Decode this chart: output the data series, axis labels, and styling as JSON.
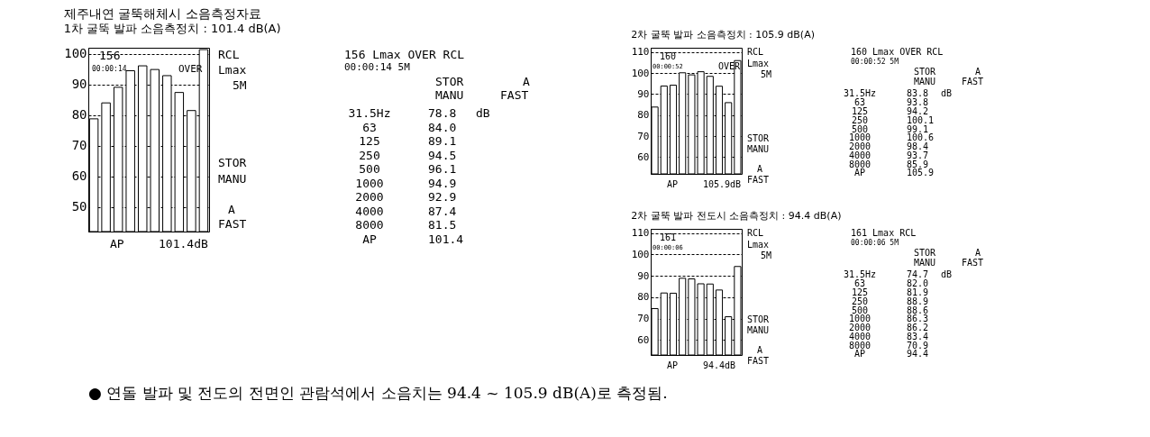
{
  "chart_data": [
    {
      "type": "bar",
      "title": "제주내연 굴뚝해체시 소음측정자료",
      "subtitle": "1차 굴뚝 발파 소음측정치 : 101.4 dB(A)",
      "categories": [
        null,
        null,
        null,
        null,
        null,
        null,
        null,
        null,
        null,
        null
      ],
      "values": [
        78.8,
        84.0,
        89.1,
        94.5,
        96.1,
        94.9,
        92.9,
        87.4,
        81.5,
        101.4
      ],
      "color": "#ffffff",
      "ylim": [
        42,
        102
      ],
      "yticks": [
        50,
        60,
        70,
        80,
        90,
        100
      ],
      "grid": "y",
      "annotations": [
        "156",
        "00:00:14",
        "OVER",
        "RCL",
        "Lmax",
        "5M",
        "STOR",
        "MANU",
        "A",
        "FAST",
        "AP",
        "101.4dB",
        "156 Lmax OVER RCL",
        "00:00:14 5M",
        "STOR",
        "MANU",
        "A",
        "FAST",
        "dB",
        "31.5Hz",
        "78.8",
        "63",
        "84.0",
        "125",
        "89.1",
        "250",
        "94.5",
        "500",
        "96.1",
        "1000",
        "94.9",
        "2000",
        "92.9",
        "4000",
        "87.4",
        "8000",
        "81.5",
        "AP",
        "101.4"
      ]
    },
    {
      "type": "bar",
      "title": "2차 굴뚝 발파 소음측정치 : 105.9 dB(A)",
      "categories": [
        null,
        null,
        null,
        null,
        null,
        null,
        null,
        null,
        null,
        null
      ],
      "values": [
        83.8,
        93.8,
        94.2,
        100.1,
        99.1,
        100.6,
        98.4,
        93.7,
        85.9,
        105.9
      ],
      "color": "#ffffff",
      "ylim": [
        52,
        112
      ],
      "yticks": [
        60,
        70,
        80,
        90,
        100,
        110
      ],
      "grid": "y",
      "annotations": [
        "160",
        "00:00:52",
        "OVER",
        "RCL",
        "Lmax",
        "5M",
        "STOR",
        "MANU",
        "A",
        "FAST",
        "AP",
        "105.9dB",
        "160 Lmax OVER RCL",
        "00:00:52 5M",
        "STOR",
        "MANU",
        "A",
        "FAST",
        "dB",
        "31.5Hz",
        "83.8",
        "63",
        "93.8",
        "125",
        "94.2",
        "250",
        "100.1",
        "500",
        "99.1",
        "1000",
        "100.6",
        "2000",
        "98.4",
        "4000",
        "93.7",
        "8000",
        "85.9",
        "AP",
        "105.9"
      ]
    },
    {
      "type": "bar",
      "title": "2차 굴뚝 발파 전도시 소음측정치 : 94.4 dB(A)",
      "categories": [
        null,
        null,
        null,
        null,
        null,
        null,
        null,
        null,
        null,
        null
      ],
      "values": [
        74.7,
        82.0,
        81.9,
        88.9,
        88.6,
        86.3,
        86.2,
        83.4,
        70.9,
        94.4
      ],
      "color": "#ffffff",
      "ylim": [
        53,
        112
      ],
      "yticks": [
        60,
        70,
        80,
        90,
        100,
        110
      ],
      "grid": "y",
      "annotations": [
        "161",
        "00:00:06",
        "RCL",
        "Lmax",
        "5M",
        "STOR",
        "MANU",
        "A",
        "FAST",
        "AP",
        "94.4dB",
        "161 Lmax RCL",
        "00:00:06 5M",
        "STOR",
        "MANU",
        "A",
        "FAST",
        "dB",
        "31.5Hz",
        "74.7",
        "63",
        "82.0",
        "125",
        "81.9",
        "250",
        "88.9",
        "500",
        "88.6",
        "1000",
        "86.3",
        "2000",
        "86.2",
        "4000",
        "83.4",
        "8000",
        "70.9",
        "AP",
        "94.4"
      ]
    },
    {
      "type": "other",
      "annotations": [
        "● 연돌 발파 및 전도의 전면인 관람석에서 소음치는 94.4 ~ 105.9 dB(A)로 측정됨."
      ]
    }
  ]
}
